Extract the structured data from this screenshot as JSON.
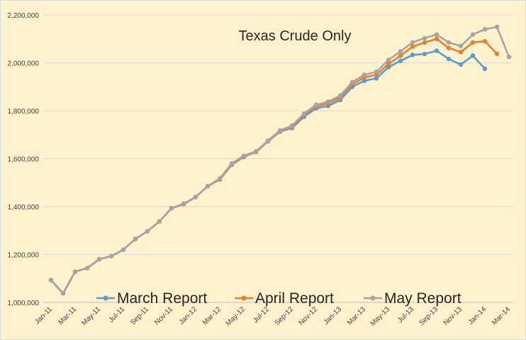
{
  "chart_data": {
    "type": "line",
    "title": "Texas Crude Only",
    "xlabel": "",
    "ylabel": "",
    "ylim": [
      1000000,
      2200000
    ],
    "y_ticks": [
      1000000,
      1200000,
      1400000,
      1600000,
      1800000,
      2000000,
      2200000
    ],
    "y_tick_labels": [
      "1,000,000",
      "1,200,000",
      "1,400,000",
      "1,600,000",
      "1,800,000",
      "2,000,000",
      "2,200,000"
    ],
    "x_tick_labels": [
      "Jan-11",
      "Mar-11",
      "May-11",
      "Jul-11",
      "Sep-11",
      "Nov-11",
      "Jan-12",
      "Mar-12",
      "May-12",
      "Jul-12",
      "Sep-12",
      "Nov-12",
      "Jan-13",
      "Mar-13",
      "May-13",
      "Jul-13",
      "Sep-13",
      "Nov-13",
      "Jan-14",
      "Mar-14"
    ],
    "categories": [
      "Jan-11",
      "Feb-11",
      "Mar-11",
      "Apr-11",
      "May-11",
      "Jun-11",
      "Jul-11",
      "Aug-11",
      "Sep-11",
      "Oct-11",
      "Nov-11",
      "Dec-11",
      "Jan-12",
      "Feb-12",
      "Mar-12",
      "Apr-12",
      "May-12",
      "Jun-12",
      "Jul-12",
      "Aug-12",
      "Sep-12",
      "Oct-12",
      "Nov-12",
      "Dec-12",
      "Jan-13",
      "Feb-13",
      "Mar-13",
      "Apr-13",
      "May-13",
      "Jun-13",
      "Jul-13",
      "Aug-13",
      "Sep-13",
      "Oct-13",
      "Nov-13",
      "Dec-13",
      "Jan-14",
      "Feb-14",
      "Mar-14"
    ],
    "grid": true,
    "legend_position": "bottom",
    "series": [
      {
        "name": "March Report",
        "color": "#5b9bd5",
        "values": [
          1093000,
          1038000,
          1128000,
          1143000,
          1180000,
          1193000,
          1220000,
          1265000,
          1297000,
          1338000,
          1393000,
          1410000,
          1440000,
          1485000,
          1513000,
          1575000,
          1607000,
          1628000,
          1672000,
          1713000,
          1728000,
          1775000,
          1810000,
          1820000,
          1845000,
          1900000,
          1925000,
          1935000,
          1982000,
          2008000,
          2033000,
          2037000,
          2050000,
          2016000,
          1993000,
          2030000,
          1975000,
          null,
          null
        ]
      },
      {
        "name": "April Report",
        "color": "#ed7d31",
        "values": [
          1093000,
          1038000,
          1128000,
          1143000,
          1180000,
          1193000,
          1220000,
          1265000,
          1297000,
          1338000,
          1393000,
          1410000,
          1440000,
          1485000,
          1513000,
          1577000,
          1610000,
          1628000,
          1673000,
          1715000,
          1733000,
          1783000,
          1818000,
          1830000,
          1855000,
          1910000,
          1940000,
          1950000,
          1996000,
          2030000,
          2068000,
          2085000,
          2100000,
          2062000,
          2045000,
          2085000,
          2090000,
          2038000,
          null
        ]
      },
      {
        "name": "May Report",
        "color": "#a5a5a5",
        "values": [
          1093000,
          1038000,
          1128000,
          1143000,
          1180000,
          1193000,
          1220000,
          1265000,
          1297000,
          1338000,
          1393000,
          1412000,
          1440000,
          1485000,
          1517000,
          1580000,
          1612000,
          1630000,
          1675000,
          1718000,
          1738000,
          1788000,
          1825000,
          1838000,
          1863000,
          1920000,
          1950000,
          1963000,
          2012000,
          2048000,
          2085000,
          2103000,
          2118000,
          2085000,
          2070000,
          2118000,
          2140000,
          2150000,
          2025000
        ]
      }
    ]
  }
}
